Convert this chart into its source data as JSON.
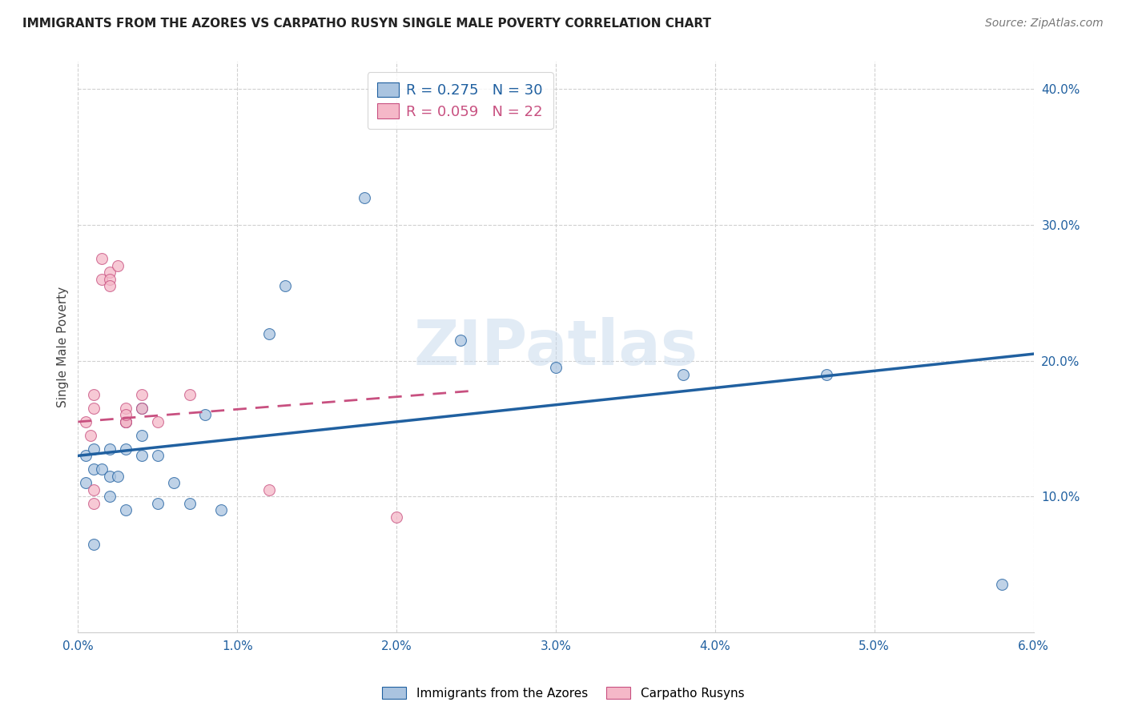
{
  "title": "IMMIGRANTS FROM THE AZORES VS CARPATHO RUSYN SINGLE MALE POVERTY CORRELATION CHART",
  "source": "Source: ZipAtlas.com",
  "ylabel": "Single Male Poverty",
  "xlim": [
    0.0,
    0.06
  ],
  "ylim": [
    0.0,
    0.42
  ],
  "xtick_labels": [
    "0.0%",
    "1.0%",
    "2.0%",
    "3.0%",
    "4.0%",
    "5.0%",
    "6.0%"
  ],
  "xtick_values": [
    0.0,
    0.01,
    0.02,
    0.03,
    0.04,
    0.05,
    0.06
  ],
  "ytick_labels": [
    "10.0%",
    "20.0%",
    "30.0%",
    "40.0%"
  ],
  "ytick_values": [
    0.1,
    0.2,
    0.3,
    0.4
  ],
  "blue_label": "Immigrants from the Azores",
  "pink_label": "Carpatho Rusyns",
  "blue_R": "R = 0.275",
  "blue_N": "N = 30",
  "pink_R": "R = 0.059",
  "pink_N": "N = 22",
  "blue_scatter_x": [
    0.0005,
    0.0005,
    0.001,
    0.001,
    0.001,
    0.0015,
    0.002,
    0.002,
    0.002,
    0.0025,
    0.003,
    0.003,
    0.003,
    0.004,
    0.004,
    0.004,
    0.005,
    0.005,
    0.006,
    0.007,
    0.008,
    0.009,
    0.012,
    0.013,
    0.018,
    0.024,
    0.03,
    0.038,
    0.047,
    0.058
  ],
  "blue_scatter_y": [
    0.13,
    0.11,
    0.135,
    0.12,
    0.065,
    0.12,
    0.115,
    0.1,
    0.135,
    0.115,
    0.135,
    0.155,
    0.09,
    0.145,
    0.13,
    0.165,
    0.13,
    0.095,
    0.11,
    0.095,
    0.16,
    0.09,
    0.22,
    0.255,
    0.32,
    0.215,
    0.195,
    0.19,
    0.19,
    0.035
  ],
  "pink_scatter_x": [
    0.0005,
    0.0008,
    0.001,
    0.001,
    0.001,
    0.001,
    0.0015,
    0.0015,
    0.002,
    0.002,
    0.002,
    0.0025,
    0.003,
    0.003,
    0.003,
    0.003,
    0.004,
    0.004,
    0.005,
    0.007,
    0.012,
    0.02
  ],
  "pink_scatter_y": [
    0.155,
    0.145,
    0.175,
    0.165,
    0.105,
    0.095,
    0.26,
    0.275,
    0.265,
    0.26,
    0.255,
    0.27,
    0.155,
    0.165,
    0.155,
    0.16,
    0.165,
    0.175,
    0.155,
    0.175,
    0.105,
    0.085
  ],
  "blue_line_x": [
    0.0,
    0.06
  ],
  "blue_line_y": [
    0.13,
    0.205
  ],
  "pink_line_x": [
    0.0,
    0.025
  ],
  "pink_line_y": [
    0.155,
    0.178
  ],
  "watermark": "ZIPatlas",
  "background_color": "#ffffff",
  "blue_color": "#aac4e0",
  "pink_color": "#f5b8c8",
  "blue_line_color": "#2060a0",
  "pink_line_color": "#c85080",
  "grid_color": "#d0d0d0"
}
